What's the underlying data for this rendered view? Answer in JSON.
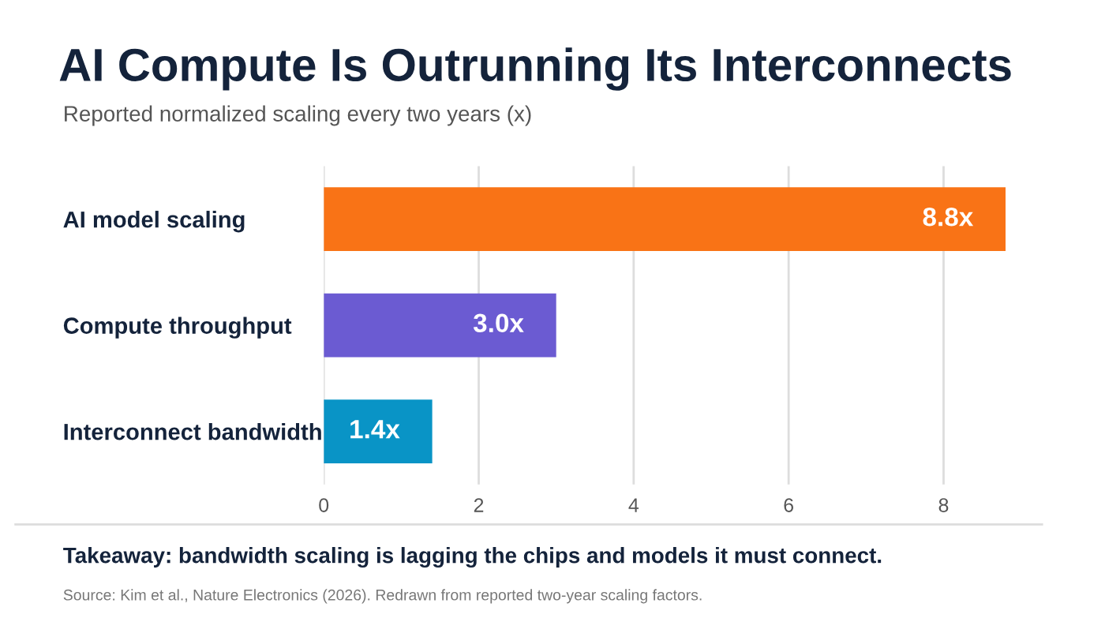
{
  "chart_data": {
    "type": "bar",
    "orientation": "horizontal",
    "title": "AI Compute Is Outrunning Its Interconnects",
    "subtitle": "Reported normalized scaling every two years (x)",
    "categories": [
      "AI model scaling",
      "Compute throughput",
      "Interconnect bandwidth"
    ],
    "values": [
      8.8,
      3.0,
      1.4
    ],
    "colors": [
      "#f97316",
      "#6b5bd2",
      "#0994c6"
    ],
    "value_labels": [
      "8.8x",
      "3.0x",
      "1.4x"
    ],
    "xlim": [
      0,
      8.8
    ],
    "xticks": [
      0,
      2,
      4,
      6,
      8
    ],
    "grid": "x",
    "annotations": [
      "Takeaway: bandwidth scaling is lagging the chips and models it must connect.",
      "Source: Kim et al., Nature Electronics (2026). Redrawn from reported two-year scaling factors."
    ]
  }
}
